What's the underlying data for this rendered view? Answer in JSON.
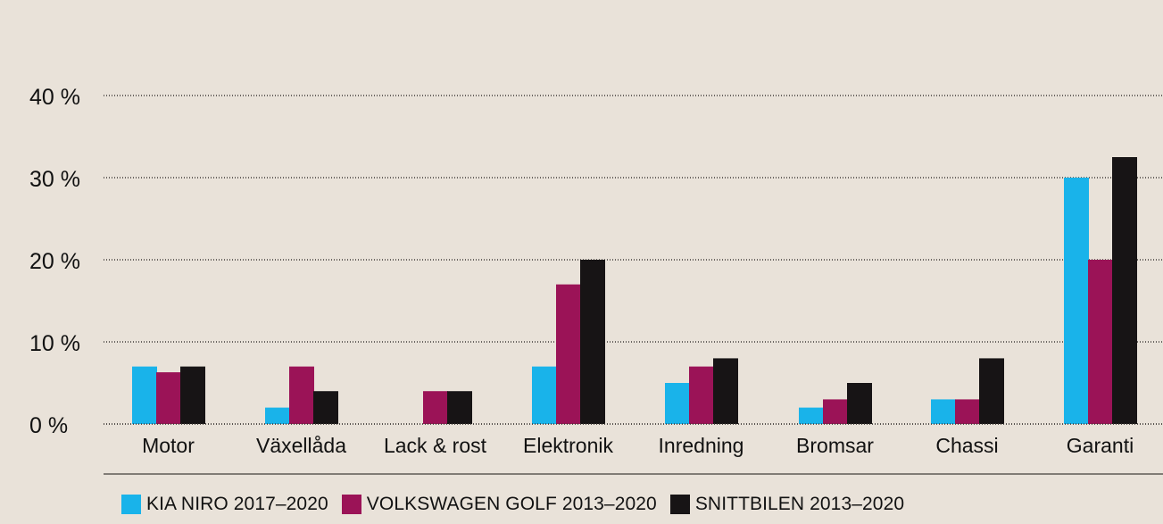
{
  "chart_data": {
    "type": "bar",
    "categories": [
      "Motor",
      "Växellåda",
      "Lack & rost",
      "Elektronik",
      "Inredning",
      "Bromsar",
      "Chassi",
      "Garanti"
    ],
    "series": [
      {
        "name": "KIA NIRO 2017–2020",
        "color": "#19b3ea",
        "values": [
          7,
          2,
          0,
          7,
          5,
          2,
          3,
          30
        ]
      },
      {
        "name": "VOLKSWAGEN GOLF 2013–2020",
        "color": "#9b1357",
        "values": [
          6.3,
          7,
          4,
          17,
          7,
          3,
          3,
          20
        ]
      },
      {
        "name": "SNITTBILEN 2013–2020",
        "color": "#171415",
        "values": [
          7,
          4,
          4,
          20,
          8,
          5,
          8,
          32.5
        ]
      }
    ],
    "y_ticks": [
      "0 %",
      "10 %",
      "20 %",
      "30 %",
      "40 %"
    ],
    "ylim": [
      0,
      40
    ],
    "grid": true,
    "legend_position": "bottom"
  }
}
